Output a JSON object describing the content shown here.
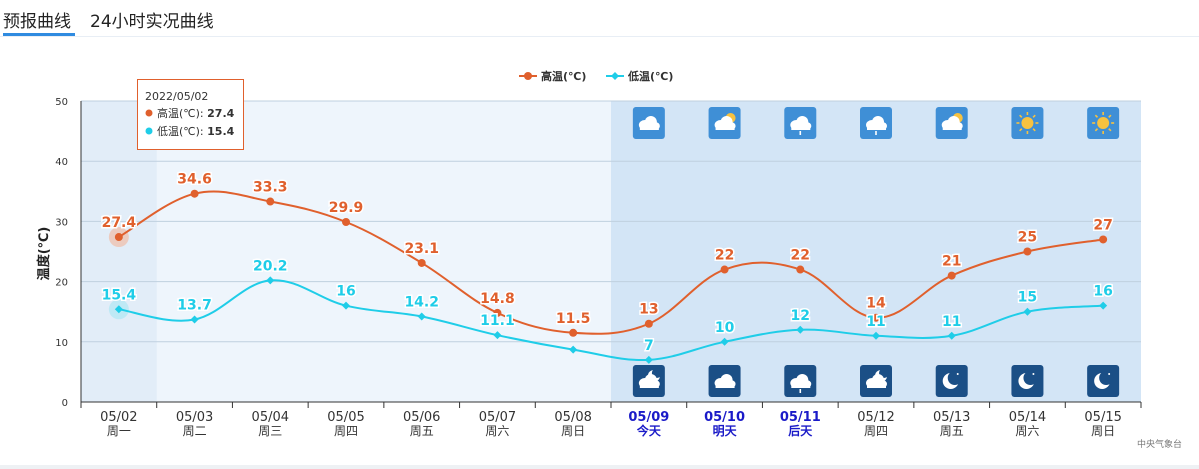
{
  "tabs": [
    {
      "label": "预报曲线",
      "active": true
    },
    {
      "label": "24小时实况曲线",
      "active": false
    }
  ],
  "chart_data": {
    "type": "line",
    "ylabel": "温度(℃)",
    "ylim": [
      0,
      50
    ],
    "yticks": [
      0,
      10,
      20,
      30,
      40,
      50
    ],
    "grid": true,
    "legend_position": "top-center",
    "categories": [
      "05/02",
      "05/03",
      "05/04",
      "05/05",
      "05/06",
      "05/07",
      "05/08",
      "05/09",
      "05/10",
      "05/11",
      "05/12",
      "05/13",
      "05/14",
      "05/15"
    ],
    "weekdays": [
      "周一",
      "周二",
      "周三",
      "周四",
      "周五",
      "周六",
      "周日",
      "今天",
      "明天",
      "后天",
      "周四",
      "周五",
      "周六",
      "周日"
    ],
    "series": [
      {
        "name": "高温(℃)",
        "color": "#e0602d",
        "values": [
          27.4,
          34.6,
          33.3,
          29.9,
          23.1,
          14.8,
          11.5,
          13,
          22,
          22,
          14,
          21,
          25,
          27
        ]
      },
      {
        "name": "低温(℃)",
        "color": "#1fcde8",
        "values": [
          15.4,
          13.7,
          20.2,
          16,
          14.2,
          11.1,
          8.7,
          7,
          10,
          12,
          11,
          11,
          15,
          16
        ]
      }
    ],
    "day_icons": [
      "cloudy-icon",
      "partly-cloudy-day-icon",
      "rain-cloud-icon",
      "rain-cloud-icon",
      "partly-cloudy-day-icon",
      "sunny-icon",
      "sunny-icon"
    ],
    "night_icons": [
      "partly-cloudy-night-icon",
      "cloudy-icon",
      "rain-cloud-icon",
      "partly-cloudy-night-icon",
      "clear-night-icon",
      "clear-night-icon",
      "clear-night-icon"
    ],
    "tooltip": {
      "date": "2022/05/02",
      "high_label": "高温(℃): ",
      "high_value": "27.4",
      "low_label": "低温(℃): ",
      "low_value": "15.4"
    },
    "credit": "中央气象台"
  }
}
